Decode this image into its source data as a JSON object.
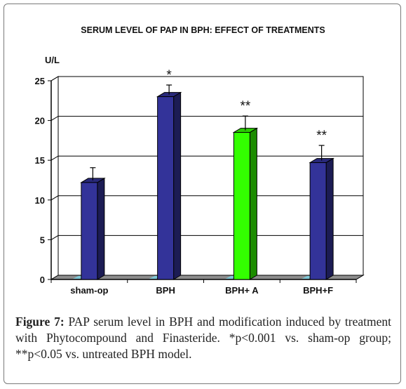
{
  "chart_data": {
    "type": "bar",
    "title": "SERUM LEVEL OF PAP IN BPH: EFFECT OF TREATMENTS",
    "ylabel": "U/L",
    "xlabel": "",
    "ylim": [
      0,
      25
    ],
    "yticks": [
      0,
      5,
      10,
      15,
      20,
      25
    ],
    "grid": true,
    "legend": "none",
    "categories": [
      "sham-op",
      "BPH",
      "BPH+ A",
      "BPH+F"
    ],
    "values": [
      12.2,
      23.0,
      18.5,
      14.7
    ],
    "errors": [
      1.6,
      1.2,
      1.8,
      1.9
    ],
    "annotations": [
      "",
      "*",
      "**",
      "**"
    ],
    "colors": [
      "#333399",
      "#333399",
      "#33ff00",
      "#333399"
    ]
  },
  "caption": {
    "label": "Figure 7:",
    "text": "PAP serum level in BPH and modification induced by treatment with Phytocompound and Finasteride. *p<0.001 vs. sham-op group; **p<0.05 vs. untreated BPH model."
  }
}
